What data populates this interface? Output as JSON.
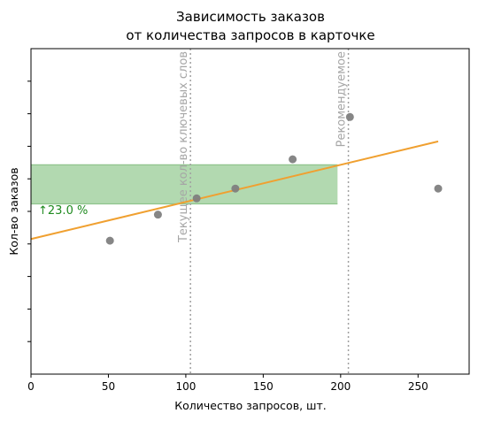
{
  "chart_data": {
    "type": "scatter",
    "title_line1": "Зависимость заказов",
    "title_line2": "от количества запросов в карточке",
    "xlabel": "Количество запросов, шт.",
    "ylabel": "Кол-во заказов",
    "xlim": [
      0,
      283
    ],
    "ylim": [
      0,
      100
    ],
    "x_ticks": [
      0,
      50,
      100,
      150,
      200,
      250
    ],
    "x_tick_labels": [
      "0",
      "50",
      "100",
      "150",
      "200",
      "250"
    ],
    "y_ticks": [
      10,
      20,
      30,
      40,
      50,
      60,
      70,
      80,
      90
    ],
    "points": [
      {
        "x": 51,
        "y": 41
      },
      {
        "x": 82,
        "y": 49
      },
      {
        "x": 107,
        "y": 54
      },
      {
        "x": 132,
        "y": 57
      },
      {
        "x": 169,
        "y": 66
      },
      {
        "x": 206,
        "y": 79
      },
      {
        "x": 263,
        "y": 57
      }
    ],
    "trend_line": {
      "x": [
        0,
        263
      ],
      "y": [
        41.5,
        71.5
      ],
      "color": "#f0a030"
    },
    "scatter_color": "#808080",
    "vertical_lines": [
      {
        "x": 103,
        "label": "Текущее кол-во ключевых слов"
      },
      {
        "x": 205,
        "label": "Рекомендуемое"
      }
    ],
    "band": {
      "y_low": 52.3,
      "y_high": 64.3,
      "x_start": 0,
      "x_end": 198,
      "color": "#b2d9b0",
      "edge_color": "#8fc48c"
    },
    "increase_label": "↑23.0 %",
    "increase_color": "#1f8a1f"
  }
}
